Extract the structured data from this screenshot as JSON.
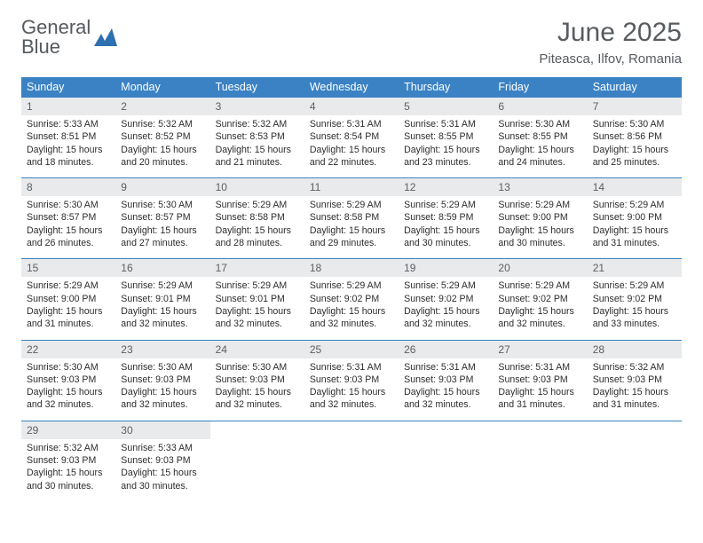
{
  "logo": {
    "line1": "General",
    "line2": "Blue"
  },
  "title": "June 2025",
  "subtitle": "Piteasca, Ilfov, Romania",
  "colors": {
    "header_bg": "#3a82c4",
    "header_text": "#ffffff",
    "daynum_bg": "#e9eaeb",
    "daynum_text": "#5b5f63",
    "border": "#3a82c4",
    "body_text": "#2d2d2d",
    "title_text": "#575c61",
    "logo_gray": "#555a5f",
    "logo_blue": "#3a7fc4"
  },
  "fontsize": {
    "title": 30,
    "subtitle": 15,
    "dayhead": 12.5,
    "daynum": 12,
    "cell": 10.6
  },
  "day_names": [
    "Sunday",
    "Monday",
    "Tuesday",
    "Wednesday",
    "Thursday",
    "Friday",
    "Saturday"
  ],
  "weeks": [
    [
      {
        "n": "1",
        "sr": "5:33 AM",
        "ss": "8:51 PM",
        "dl": "15 hours and 18 minutes."
      },
      {
        "n": "2",
        "sr": "5:32 AM",
        "ss": "8:52 PM",
        "dl": "15 hours and 20 minutes."
      },
      {
        "n": "3",
        "sr": "5:32 AM",
        "ss": "8:53 PM",
        "dl": "15 hours and 21 minutes."
      },
      {
        "n": "4",
        "sr": "5:31 AM",
        "ss": "8:54 PM",
        "dl": "15 hours and 22 minutes."
      },
      {
        "n": "5",
        "sr": "5:31 AM",
        "ss": "8:55 PM",
        "dl": "15 hours and 23 minutes."
      },
      {
        "n": "6",
        "sr": "5:30 AM",
        "ss": "8:55 PM",
        "dl": "15 hours and 24 minutes."
      },
      {
        "n": "7",
        "sr": "5:30 AM",
        "ss": "8:56 PM",
        "dl": "15 hours and 25 minutes."
      }
    ],
    [
      {
        "n": "8",
        "sr": "5:30 AM",
        "ss": "8:57 PM",
        "dl": "15 hours and 26 minutes."
      },
      {
        "n": "9",
        "sr": "5:30 AM",
        "ss": "8:57 PM",
        "dl": "15 hours and 27 minutes."
      },
      {
        "n": "10",
        "sr": "5:29 AM",
        "ss": "8:58 PM",
        "dl": "15 hours and 28 minutes."
      },
      {
        "n": "11",
        "sr": "5:29 AM",
        "ss": "8:58 PM",
        "dl": "15 hours and 29 minutes."
      },
      {
        "n": "12",
        "sr": "5:29 AM",
        "ss": "8:59 PM",
        "dl": "15 hours and 30 minutes."
      },
      {
        "n": "13",
        "sr": "5:29 AM",
        "ss": "9:00 PM",
        "dl": "15 hours and 30 minutes."
      },
      {
        "n": "14",
        "sr": "5:29 AM",
        "ss": "9:00 PM",
        "dl": "15 hours and 31 minutes."
      }
    ],
    [
      {
        "n": "15",
        "sr": "5:29 AM",
        "ss": "9:00 PM",
        "dl": "15 hours and 31 minutes."
      },
      {
        "n": "16",
        "sr": "5:29 AM",
        "ss": "9:01 PM",
        "dl": "15 hours and 32 minutes."
      },
      {
        "n": "17",
        "sr": "5:29 AM",
        "ss": "9:01 PM",
        "dl": "15 hours and 32 minutes."
      },
      {
        "n": "18",
        "sr": "5:29 AM",
        "ss": "9:02 PM",
        "dl": "15 hours and 32 minutes."
      },
      {
        "n": "19",
        "sr": "5:29 AM",
        "ss": "9:02 PM",
        "dl": "15 hours and 32 minutes."
      },
      {
        "n": "20",
        "sr": "5:29 AM",
        "ss": "9:02 PM",
        "dl": "15 hours and 32 minutes."
      },
      {
        "n": "21",
        "sr": "5:29 AM",
        "ss": "9:02 PM",
        "dl": "15 hours and 33 minutes."
      }
    ],
    [
      {
        "n": "22",
        "sr": "5:30 AM",
        "ss": "9:03 PM",
        "dl": "15 hours and 32 minutes."
      },
      {
        "n": "23",
        "sr": "5:30 AM",
        "ss": "9:03 PM",
        "dl": "15 hours and 32 minutes."
      },
      {
        "n": "24",
        "sr": "5:30 AM",
        "ss": "9:03 PM",
        "dl": "15 hours and 32 minutes."
      },
      {
        "n": "25",
        "sr": "5:31 AM",
        "ss": "9:03 PM",
        "dl": "15 hours and 32 minutes."
      },
      {
        "n": "26",
        "sr": "5:31 AM",
        "ss": "9:03 PM",
        "dl": "15 hours and 32 minutes."
      },
      {
        "n": "27",
        "sr": "5:31 AM",
        "ss": "9:03 PM",
        "dl": "15 hours and 31 minutes."
      },
      {
        "n": "28",
        "sr": "5:32 AM",
        "ss": "9:03 PM",
        "dl": "15 hours and 31 minutes."
      }
    ],
    [
      {
        "n": "29",
        "sr": "5:32 AM",
        "ss": "9:03 PM",
        "dl": "15 hours and 30 minutes."
      },
      {
        "n": "30",
        "sr": "5:33 AM",
        "ss": "9:03 PM",
        "dl": "15 hours and 30 minutes."
      },
      null,
      null,
      null,
      null,
      null
    ]
  ],
  "labels": {
    "sunrise": "Sunrise: ",
    "sunset": "Sunset: ",
    "daylight": "Daylight: "
  }
}
